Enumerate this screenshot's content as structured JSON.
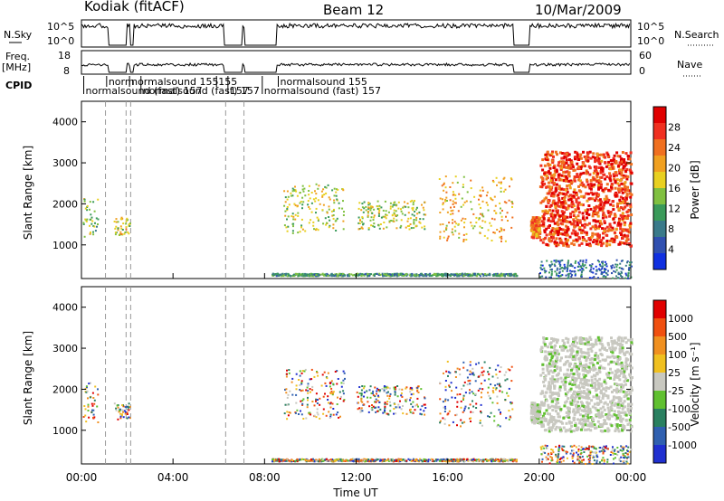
{
  "header": {
    "radar": "Kodiak (fitACF)",
    "beam": "Beam 12",
    "date": "10/Mar/2009"
  },
  "panels": {
    "nsky": {
      "left_label": "N.Sky",
      "left_ticks": [
        "10^5",
        "10^0"
      ],
      "right_ticks": [
        "10^5",
        "10^0"
      ],
      "right_label": "N.Search"
    },
    "freq": {
      "left_label_1": "Freq.",
      "left_label_2": "[MHz]",
      "left_ticks": [
        "18",
        "8"
      ],
      "right_ticks": [
        "60",
        "0"
      ],
      "right_label": "Nave"
    },
    "cpid": {
      "label": "CPID",
      "annotations": [
        {
          "text": "normalsound (fast) 157",
          "row": 0,
          "hour": 0.1
        },
        {
          "text": "norm",
          "row": 1,
          "hour": 1.1
        },
        {
          "text": "normalsound 155",
          "row": 1,
          "hour": 2.1
        },
        {
          "text": "normalsound (fast) 157",
          "row": 0,
          "hour": 2.6
        },
        {
          "text": "155",
          "row": 1,
          "hour": 5.9
        },
        {
          "text": "157",
          "row": 0,
          "hour": 6.4
        },
        {
          "text": "normalsound 155",
          "row": 1,
          "hour": 8.6
        },
        {
          "text": "normalsound (fast) 157",
          "row": 0,
          "hour": 7.9
        }
      ]
    }
  },
  "axes": {
    "x_title": "Time UT",
    "x_ticks": [
      "00:00",
      "04:00",
      "08:00",
      "12:00",
      "16:00",
      "20:00",
      "00:00"
    ],
    "y_title": "Slant Range [km]",
    "y_ticks": [
      "1000",
      "2000",
      "3000",
      "4000"
    ]
  },
  "colorbars": {
    "power": {
      "label": "Power [dB]",
      "ticks": [
        "4",
        "8",
        "12",
        "16",
        "20",
        "24",
        "28"
      ],
      "colors": [
        "#1030e0",
        "#3050b0",
        "#3a7a8a",
        "#3a9a5a",
        "#80c040",
        "#e8d020",
        "#f0a020",
        "#f07020",
        "#f03020",
        "#e00000"
      ]
    },
    "velocity": {
      "label": "Velocity [m s⁻¹]",
      "ticks": [
        "1000",
        "500",
        "100",
        "25",
        "-25",
        "-100",
        "-500",
        "-1000"
      ],
      "colors": [
        "#2030d0",
        "#3060b0",
        "#2a8060",
        "#60c030",
        "#c8c8c0",
        "#f0c020",
        "#f09020",
        "#f05010",
        "#e00000"
      ]
    }
  },
  "chart_data": {
    "type": "heatmap",
    "x_range_hours": [
      0,
      24
    ],
    "y_range_km": [
      180,
      4500
    ],
    "dashed_time_markers_hours": [
      1.05,
      1.95,
      2.15,
      6.3,
      7.1
    ],
    "power_scatter_clusters": [
      {
        "hour_range": [
          0.05,
          0.7
        ],
        "km_range": [
          1200,
          2200
        ],
        "power_db": 14
      },
      {
        "hour_range": [
          1.4,
          2.1
        ],
        "km_range": [
          1250,
          1700
        ],
        "power_db": 18
      },
      {
        "hour_range": [
          8.3,
          19.0
        ],
        "km_range": [
          260,
          320
        ],
        "power_db": 10
      },
      {
        "hour_range": [
          8.8,
          11.5
        ],
        "km_range": [
          1300,
          2500
        ],
        "power_db": 16
      },
      {
        "hour_range": [
          12.0,
          15.0
        ],
        "km_range": [
          1400,
          2100
        ],
        "power_db": 16
      },
      {
        "hour_range": [
          15.6,
          18.8
        ],
        "km_range": [
          1100,
          2700
        ],
        "power_db": 20
      },
      {
        "hour_range": [
          19.6,
          20.0
        ],
        "km_range": [
          1200,
          1700
        ],
        "power_db": 24
      },
      {
        "hour_range": [
          20.0,
          24.0
        ],
        "km_range": [
          1000,
          3300
        ],
        "power_db": 28
      },
      {
        "hour_range": [
          20.0,
          24.0
        ],
        "km_range": [
          200,
          650
        ],
        "power_db": 6
      }
    ]
  }
}
